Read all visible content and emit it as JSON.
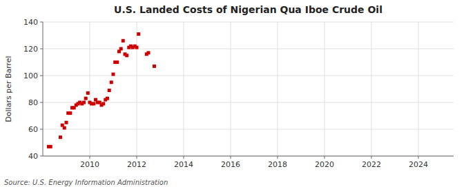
{
  "chart_data": {
    "type": "scatter",
    "title": "U.S. Landed Costs of Nigerian Qua Iboe Crude Oil",
    "y_label": "Dollars per Barrel",
    "source": "Source: U.S. Energy Information Administration",
    "color": "#cc0000",
    "marker": "square",
    "grid": true,
    "xlim": [
      2008.0,
      2025.5
    ],
    "ylim": [
      40,
      140
    ],
    "xticks": [
      2010,
      2012,
      2014,
      2016,
      2018,
      2020,
      2022,
      2024
    ],
    "yticks": [
      40,
      60,
      80,
      100,
      120,
      140
    ],
    "x": [
      2008.25,
      2008.33,
      2008.75,
      2008.83,
      2008.92,
      2009.0,
      2009.08,
      2009.17,
      2009.25,
      2009.33,
      2009.42,
      2009.5,
      2009.58,
      2009.67,
      2009.75,
      2009.83,
      2009.92,
      2010.0,
      2010.08,
      2010.17,
      2010.25,
      2010.33,
      2010.42,
      2010.5,
      2010.58,
      2010.67,
      2010.75,
      2010.83,
      2010.92,
      2011.0,
      2011.08,
      2011.17,
      2011.25,
      2011.33,
      2011.42,
      2011.5,
      2011.58,
      2011.67,
      2011.75,
      2011.83,
      2011.92,
      2012.0,
      2012.08,
      2012.42,
      2012.5,
      2012.75
    ],
    "values": [
      47,
      47,
      54,
      63,
      61,
      65,
      72,
      72,
      76,
      76,
      78,
      79,
      80,
      79,
      80,
      83,
      87,
      80,
      79,
      79,
      82,
      80,
      80,
      78,
      79,
      82,
      83,
      89,
      95,
      101,
      110,
      110,
      118,
      120,
      126,
      116,
      115,
      121,
      122,
      121,
      122,
      121,
      131,
      116,
      117,
      107
    ]
  }
}
